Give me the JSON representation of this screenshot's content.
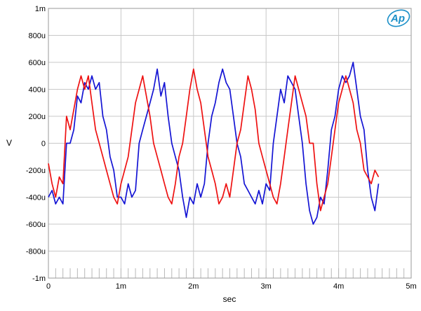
{
  "chart_data": {
    "type": "line",
    "xlabel": "sec",
    "ylabel": "V",
    "xlim": [
      0,
      0.005
    ],
    "ylim": [
      -0.001,
      0.001
    ],
    "grid": true,
    "x_ticks": [
      {
        "value": 0,
        "label": "0"
      },
      {
        "value": 0.001,
        "label": "1m"
      },
      {
        "value": 0.002,
        "label": "2m"
      },
      {
        "value": 0.003,
        "label": "3m"
      },
      {
        "value": 0.004,
        "label": "4m"
      },
      {
        "value": 0.005,
        "label": "5m"
      }
    ],
    "y_ticks": [
      {
        "value": 0.001,
        "label": "1m"
      },
      {
        "value": 0.0008,
        "label": "800u"
      },
      {
        "value": 0.0006,
        "label": "600u"
      },
      {
        "value": 0.0004,
        "label": "400u"
      },
      {
        "value": 0.0002,
        "label": "200u"
      },
      {
        "value": 0,
        "label": "0"
      },
      {
        "value": -0.0002,
        "label": "-200u"
      },
      {
        "value": -0.0004,
        "label": "-400u"
      },
      {
        "value": -0.0006,
        "label": "-600u"
      },
      {
        "value": -0.0008,
        "label": "-800u"
      },
      {
        "value": -0.001,
        "label": "-1m"
      }
    ],
    "series": [
      {
        "color": "#1414d4",
        "x_start": 0,
        "x_step": 5e-05,
        "values": [
          -0.0004,
          -0.00035,
          -0.00045,
          -0.0004,
          -0.00045,
          0.0,
          0.0,
          0.0001,
          0.00035,
          0.0003,
          0.00045,
          0.0004,
          0.0005,
          0.0004,
          0.00045,
          0.0002,
          0.0001,
          -0.0001,
          -0.0002,
          -0.0004,
          -0.0004,
          -0.00045,
          -0.0003,
          -0.0004,
          -0.00035,
          0.0,
          0.0001,
          0.0002,
          0.0003,
          0.0004,
          0.00055,
          0.00035,
          0.00045,
          0.0002,
          0.0,
          -0.0001,
          -0.0002,
          -0.0004,
          -0.00055,
          -0.0004,
          -0.00045,
          -0.0003,
          -0.0004,
          -0.0003,
          0.0,
          0.0002,
          0.0003,
          0.00045,
          0.00055,
          0.00045,
          0.0004,
          0.0002,
          0.0,
          -0.0001,
          -0.0003,
          -0.00035,
          -0.0004,
          -0.00045,
          -0.00035,
          -0.00045,
          -0.0003,
          -0.00035,
          0.0,
          0.0002,
          0.0004,
          0.0003,
          0.0005,
          0.00045,
          0.0004,
          0.0002,
          0.0,
          -0.0003,
          -0.0005,
          -0.0006,
          -0.00055,
          -0.0004,
          -0.00045,
          -0.0002,
          0.0001,
          0.0002,
          0.0004,
          0.0005,
          0.00045,
          0.0005,
          0.0006,
          0.0004,
          0.0002,
          0.0001,
          -0.0002,
          -0.0004,
          -0.0005,
          -0.0003
        ]
      },
      {
        "color": "#ee1111",
        "x_start": 0,
        "x_step": 5e-05,
        "values": [
          -0.00015,
          -0.0003,
          -0.0004,
          -0.00025,
          -0.0003,
          0.0002,
          0.0001,
          0.00025,
          0.0004,
          0.0005,
          0.0004,
          0.0005,
          0.0003,
          0.0001,
          0.0,
          -0.0001,
          -0.0002,
          -0.0003,
          -0.0004,
          -0.00045,
          -0.0003,
          -0.0002,
          -0.0001,
          0.0001,
          0.0003,
          0.0004,
          0.0005,
          0.00035,
          0.0002,
          0.0,
          -0.0001,
          -0.0002,
          -0.0003,
          -0.0004,
          -0.00045,
          -0.0003,
          -0.0001,
          0.0,
          0.0002,
          0.0004,
          0.00055,
          0.0004,
          0.0003,
          0.0001,
          -0.0001,
          -0.0002,
          -0.0003,
          -0.00045,
          -0.0004,
          -0.0003,
          -0.0004,
          -0.0002,
          0.0,
          0.0001,
          0.0003,
          0.0005,
          0.0004,
          0.00025,
          0.0,
          -0.0001,
          -0.0002,
          -0.0003,
          -0.0004,
          -0.00045,
          -0.0003,
          -0.0001,
          0.0001,
          0.0003,
          0.0005,
          0.0004,
          0.0003,
          0.0002,
          0.0,
          0.0,
          -0.0003,
          -0.0005,
          -0.0004,
          -0.0003,
          -0.0001,
          0.0001,
          0.0003,
          0.0004,
          0.0005,
          0.0004,
          0.0003,
          0.0001,
          0.0,
          -0.0002,
          -0.00025,
          -0.0003,
          -0.0002,
          -0.00025
        ]
      }
    ]
  }
}
